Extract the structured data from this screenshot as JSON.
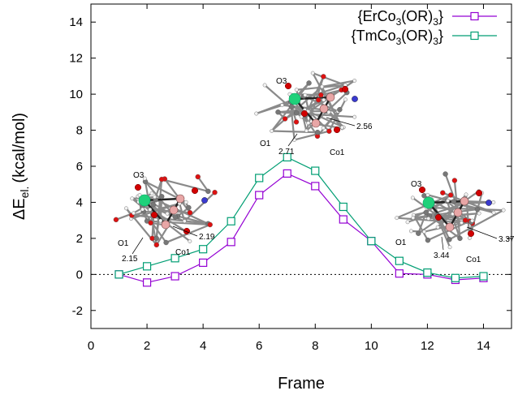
{
  "chart_data": {
    "type": "line",
    "xlabel": "Frame",
    "ylabel_main": "ΔE",
    "ylabel_sub": "el.",
    "ylabel_unit": "(kcal/mol)",
    "xlim": [
      0,
      15
    ],
    "ylim": [
      -3,
      15
    ],
    "xticks": [
      0,
      2,
      4,
      6,
      8,
      10,
      12,
      14
    ],
    "yticks": [
      -2,
      0,
      2,
      4,
      6,
      8,
      10,
      12,
      14
    ],
    "zero_line": true,
    "legend_position": "top-right",
    "series": [
      {
        "name": "{ErCo3(OR)3}",
        "name_parts": {
          "a": "{ErCo",
          "s1": "3",
          "b": "(OR)",
          "s2": "3",
          "c": "}"
        },
        "color": "#9400d3",
        "marker": "open-square",
        "x": [
          1,
          2,
          3,
          4,
          5,
          6,
          7,
          8,
          9,
          10,
          11,
          12,
          13,
          14
        ],
        "y": [
          0.0,
          -0.45,
          -0.1,
          0.65,
          1.8,
          4.4,
          5.6,
          4.9,
          3.05,
          1.85,
          0.05,
          0.0,
          -0.3,
          -0.2
        ]
      },
      {
        "name": "{TmCo3(OR)3}",
        "name_parts": {
          "a": "{TmCo",
          "s1": "3",
          "b": "(OR)",
          "s2": "3",
          "c": "}"
        },
        "color": "#009e73",
        "marker": "open-square",
        "x": [
          1,
          2,
          3,
          4,
          5,
          6,
          7,
          8,
          9,
          10,
          11,
          12,
          13,
          14
        ],
        "y": [
          0.0,
          0.45,
          0.9,
          1.4,
          2.95,
          5.35,
          6.5,
          5.75,
          3.75,
          1.85,
          0.75,
          0.1,
          -0.2,
          -0.1
        ]
      }
    ],
    "annotations": {
      "left": {
        "atom1": "O3",
        "atom2": "O1",
        "atom3": "Co1",
        "dist1": "2.19",
        "dist2": "2.15"
      },
      "middle": {
        "atom1": "O3",
        "atom2": "O1",
        "atom3": "Co1",
        "dist1": "2.56",
        "dist2": "2.71"
      },
      "right": {
        "atom1": "O3",
        "atom2": "O1",
        "atom3": "Co1",
        "dist1": "3.37",
        "dist2": "3.44"
      }
    }
  }
}
